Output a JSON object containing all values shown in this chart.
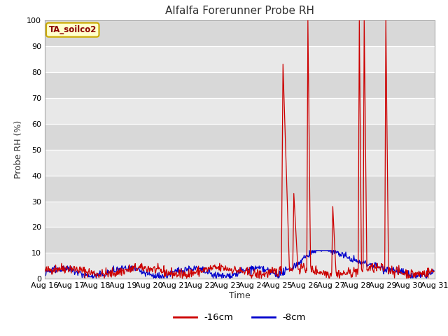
{
  "title": "Alfalfa Forerunner Probe RH",
  "ylabel": "Probe RH (%)",
  "xlabel": "Time",
  "ylim": [
    0,
    100
  ],
  "yticks": [
    0,
    10,
    20,
    30,
    40,
    50,
    60,
    70,
    80,
    90,
    100
  ],
  "xtick_labels": [
    "Aug 16",
    "Aug 17",
    "Aug 18",
    "Aug 19",
    "Aug 20",
    "Aug 21",
    "Aug 22",
    "Aug 23",
    "Aug 24",
    "Aug 25",
    "Aug 26",
    "Aug 27",
    "Aug 28",
    "Aug 29",
    "Aug 30",
    "Aug 31"
  ],
  "color_16cm": "#cc0000",
  "color_8cm": "#0000cc",
  "legend_label_16cm": "-16cm",
  "legend_label_8cm": "-8cm",
  "station_label": "TA_soilco2",
  "bg_dark": "#d8d8d8",
  "bg_light": "#e8e8e8",
  "title_fontsize": 11,
  "axis_label_fontsize": 9,
  "tick_fontsize": 8
}
